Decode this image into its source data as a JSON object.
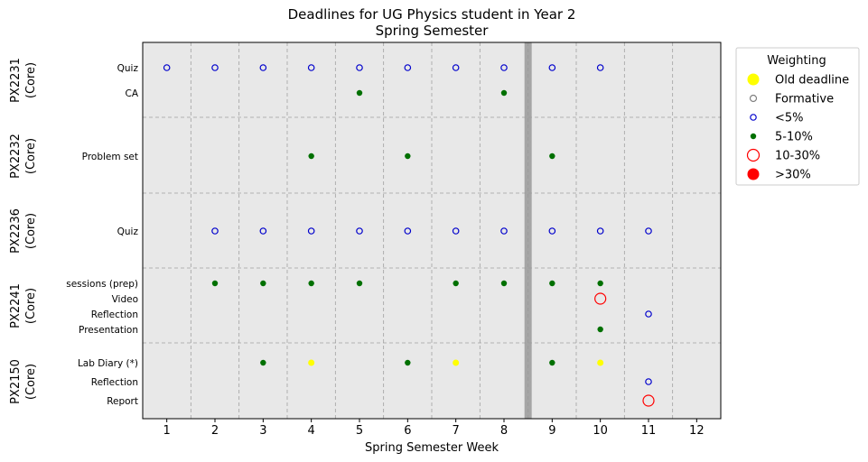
{
  "chart_data": {
    "type": "scatter",
    "title": "Deadlines for UG Physics student in Year 2",
    "subtitle": "Spring Semester",
    "xlabel": "Spring Semester Week",
    "xlim": [
      0.5,
      12.5
    ],
    "xticks": [
      "1",
      "2",
      "3",
      "4",
      "5",
      "6",
      "7",
      "8",
      "9",
      "10",
      "11",
      "12"
    ],
    "grid": true,
    "marker_line_x": 8.5,
    "groups": [
      {
        "name": "PX2231",
        "sub": "(Core)",
        "rows": [
          "Quiz",
          "CA"
        ]
      },
      {
        "name": "PX2232",
        "sub": "(Core)",
        "rows": [
          "Problem set"
        ]
      },
      {
        "name": "PX2236",
        "sub": "(Core)",
        "rows": [
          "Quiz"
        ]
      },
      {
        "name": "PX2241",
        "sub": "(Core)",
        "rows": [
          "sessions (prep)",
          "Video",
          "Reflection",
          "Presentation"
        ]
      },
      {
        "name": "PX2150",
        "sub": "(Core)",
        "rows": [
          "Lab Diary (*)",
          "Reflection",
          "Report"
        ]
      }
    ],
    "legend": {
      "title": "Weighting",
      "placement": "outside-right",
      "entries": [
        "Old deadline",
        "Formative",
        "<5%",
        "5-10%",
        "10-30%",
        ">30%"
      ]
    },
    "series": [
      {
        "name": "<5%",
        "points": [
          {
            "group": 0,
            "row": 0,
            "weeks": [
              1,
              2,
              3,
              4,
              5,
              6,
              7,
              8,
              9,
              10
            ]
          },
          {
            "group": 2,
            "row": 0,
            "weeks": [
              2,
              3,
              4,
              5,
              6,
              7,
              8,
              9,
              10,
              11
            ]
          },
          {
            "group": 3,
            "row": 2,
            "weeks": [
              11
            ]
          },
          {
            "group": 4,
            "row": 1,
            "weeks": [
              11
            ]
          }
        ]
      },
      {
        "name": "5-10%",
        "points": [
          {
            "group": 0,
            "row": 1,
            "weeks": [
              5,
              8
            ]
          },
          {
            "group": 1,
            "row": 0,
            "weeks": [
              4,
              6,
              9
            ]
          },
          {
            "group": 3,
            "row": 0,
            "weeks": [
              2,
              3,
              4,
              5,
              7,
              8,
              9,
              10
            ]
          },
          {
            "group": 3,
            "row": 3,
            "weeks": [
              10
            ]
          },
          {
            "group": 4,
            "row": 0,
            "weeks": [
              3,
              6,
              9
            ]
          }
        ]
      },
      {
        "name": "10-30%",
        "points": [
          {
            "group": 3,
            "row": 1,
            "weeks": [
              10
            ]
          },
          {
            "group": 4,
            "row": 2,
            "weeks": [
              11
            ]
          }
        ]
      },
      {
        "name": "Old deadline",
        "points": [
          {
            "group": 4,
            "row": 0,
            "weeks": [
              4,
              7,
              10
            ]
          }
        ]
      }
    ],
    "colors": {
      "Old deadline": "#ffff00",
      "Formative": "#808080",
      "<5%": "#0000cc",
      "5-10%": "#007000",
      "10-30%": "#ff0000",
      ">30%": "#ff0000",
      "plot_bg": "#e8e8e8",
      "grid": "#a0a0a0",
      "marker_line": "#999999"
    }
  }
}
